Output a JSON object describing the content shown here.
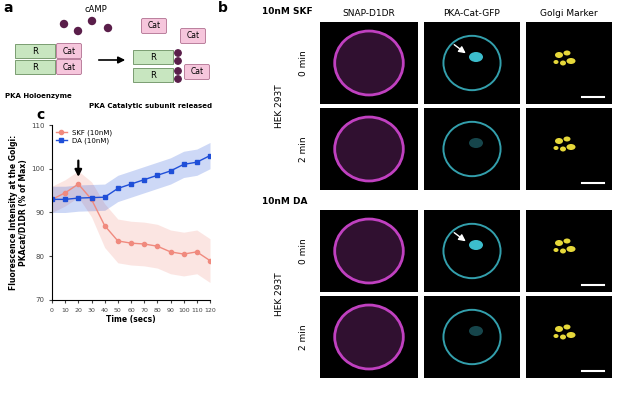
{
  "diagram": {
    "label": "a",
    "messenger": "cAMP",
    "regulatory": "R",
    "catalytic": "Cat",
    "holoenzyme": "PKA Holoenzyme",
    "released": "PKA Catalytic subunit released"
  },
  "micrographs": {
    "label": "b",
    "columns": [
      "SNAP-D1DR",
      "PKA-Cat-GFP",
      "Golgi Marker"
    ],
    "cell_line": "HEK 293T",
    "groups": [
      {
        "treatment": "10nM SKF",
        "times": [
          "0 min",
          "2 min"
        ]
      },
      {
        "treatment": "10nM DA",
        "times": [
          "0 min",
          "2 min"
        ]
      }
    ]
  },
  "chart_data": {
    "type": "line",
    "panel_label": "c",
    "x_label": "Time (secs)",
    "y_label": "Fluorescence Intensity at the Golgi:\nPKAcat/D1DR (% of Max)",
    "x": [
      0,
      10,
      20,
      30,
      40,
      50,
      60,
      70,
      80,
      90,
      100,
      110,
      120
    ],
    "series": [
      {
        "name": "SKF (10nM)",
        "color": "#f08a7e",
        "marker": "o",
        "line_style": "solid",
        "values": [
          93,
          94.5,
          96.5,
          93,
          87,
          83.5,
          83,
          82.8,
          82.3,
          81,
          80.5,
          81,
          79
        ],
        "error": [
          3,
          3,
          3,
          4,
          5,
          5,
          5,
          5,
          5,
          5,
          5,
          5,
          5
        ]
      },
      {
        "name": "DA (10nM)",
        "color": "#1f4fd8",
        "marker": "s",
        "line_style": "solid",
        "values": [
          93,
          93,
          93.3,
          93.4,
          93.5,
          95.5,
          96.5,
          97.5,
          98.5,
          99.5,
          101,
          101.5,
          103
        ],
        "error": [
          3,
          3,
          3,
          3,
          3,
          3,
          3,
          3,
          3,
          3,
          3,
          3,
          3
        ]
      }
    ],
    "xlim": [
      0,
      120
    ],
    "xticks": [
      0,
      10,
      20,
      30,
      40,
      50,
      60,
      70,
      80,
      90,
      100,
      110,
      120
    ],
    "ylim": [
      70,
      110
    ],
    "yticks": [
      70,
      80,
      90,
      100,
      110
    ],
    "legend": "upper left",
    "grid": false,
    "arrow": {
      "x": 20,
      "y_from": 102.5,
      "y_to": 97.5
    }
  }
}
